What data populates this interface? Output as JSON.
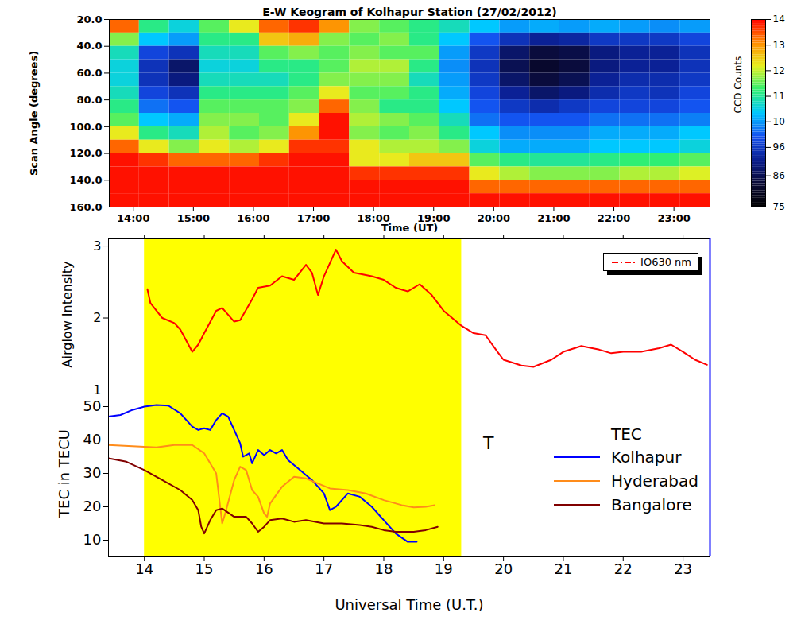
{
  "chart_data": [
    {
      "type": "heatmap",
      "title": "E-W Keogram of Kolhapur Station (27/02/2012)",
      "xlabel": "Time (UT)",
      "ylabel": "Scan Angle (degrees)",
      "x": [
        13.6,
        14.1,
        14.6,
        15.1,
        15.6,
        16.1,
        16.6,
        17.1,
        17.6,
        18.1,
        18.6,
        19.1,
        19.6,
        20.1,
        20.6,
        21.1,
        21.6,
        22.1,
        22.6,
        23.1
      ],
      "y": [
        20,
        30,
        40,
        50,
        60,
        70,
        80,
        90,
        100,
        110,
        120,
        130,
        140,
        150
      ],
      "cells": [
        [
          135,
          115,
          110,
          118,
          125,
          135,
          138,
          132,
          120,
          118,
          115,
          112,
          108,
          105,
          106,
          105,
          106,
          105,
          104,
          105
        ],
        [
          120,
          108,
          105,
          115,
          115,
          128,
          130,
          120,
          118,
          120,
          115,
          108,
          100,
          95,
          92,
          93,
          96,
          96,
          96,
          98
        ],
        [
          112,
          98,
          95,
          112,
          112,
          118,
          120,
          118,
          120,
          118,
          118,
          105,
          96,
          88,
          84,
          85,
          90,
          92,
          92,
          95
        ],
        [
          110,
          95,
          88,
          110,
          110,
          115,
          115,
          118,
          122,
          122,
          115,
          104,
          95,
          86,
          82,
          84,
          90,
          92,
          92,
          95
        ],
        [
          110,
          95,
          90,
          112,
          112,
          112,
          115,
          120,
          120,
          120,
          112,
          105,
          96,
          88,
          84,
          86,
          92,
          94,
          94,
          96
        ],
        [
          112,
          98,
          95,
          115,
          115,
          115,
          118,
          125,
          118,
          118,
          115,
          106,
          98,
          92,
          88,
          90,
          94,
          96,
          95,
          98
        ],
        [
          115,
          102,
          100,
          118,
          118,
          118,
          120,
          135,
          120,
          115,
          115,
          108,
          100,
          96,
          94,
          96,
          98,
          98,
          98,
          100
        ],
        [
          118,
          108,
          106,
          120,
          120,
          118,
          125,
          140,
          122,
          120,
          118,
          112,
          102,
          100,
          100,
          100,
          102,
          102,
          102,
          103
        ],
        [
          125,
          115,
          112,
          122,
          118,
          120,
          132,
          140,
          120,
          118,
          120,
          115,
          108,
          104,
          104,
          104,
          106,
          106,
          106,
          108
        ],
        [
          135,
          125,
          120,
          125,
          122,
          125,
          138,
          138,
          125,
          122,
          122,
          120,
          110,
          106,
          106,
          106,
          108,
          108,
          108,
          110
        ],
        [
          140,
          138,
          135,
          135,
          135,
          138,
          140,
          140,
          125,
          125,
          128,
          128,
          118,
          115,
          114,
          114,
          115,
          116,
          116,
          118
        ],
        [
          140,
          140,
          140,
          140,
          140,
          140,
          140,
          140,
          138,
          138,
          138,
          138,
          125,
          122,
          120,
          120,
          120,
          122,
          122,
          124
        ],
        [
          140,
          140,
          140,
          140,
          140,
          140,
          140,
          140,
          140,
          140,
          140,
          140,
          135,
          135,
          135,
          135,
          135,
          135,
          135,
          135
        ],
        [
          140,
          140,
          140,
          140,
          140,
          140,
          140,
          140,
          140,
          140,
          140,
          140,
          140,
          140,
          140,
          140,
          140,
          140,
          140,
          140
        ]
      ],
      "xlim": [
        13.6,
        23.6
      ],
      "xticks": [
        {
          "value": 14,
          "label": "14:00"
        },
        {
          "value": 15,
          "label": "15:00"
        },
        {
          "value": 16,
          "label": "16:00"
        },
        {
          "value": 17,
          "label": "17:00"
        },
        {
          "value": 18,
          "label": "18:00"
        },
        {
          "value": 19,
          "label": "19:00"
        },
        {
          "value": 20,
          "label": "20:00"
        },
        {
          "value": 21,
          "label": "21:00"
        },
        {
          "value": 22,
          "label": "22:00"
        },
        {
          "value": 23,
          "label": "23:00"
        }
      ],
      "ylim": [
        160,
        20
      ],
      "yticks": [
        {
          "value": 20,
          "label": "20.0"
        },
        {
          "value": 40,
          "label": "40.0"
        },
        {
          "value": 60,
          "label": "60.0"
        },
        {
          "value": 80,
          "label": "80.0"
        },
        {
          "value": 100,
          "label": "100.0"
        },
        {
          "value": 120,
          "label": "120.0"
        },
        {
          "value": 140,
          "label": "140.0"
        },
        {
          "value": 160,
          "label": "160.0"
        }
      ],
      "colorbar": {
        "label": "CCD Counts",
        "range": [
          75,
          141
        ],
        "ticks": [
          75,
          86,
          96,
          {
            "value": 105,
            "label": "10"
          },
          {
            "value": 114,
            "label": "11"
          },
          {
            "value": 123,
            "label": "12"
          },
          {
            "value": 132,
            "label": "13"
          },
          {
            "value": 141,
            "label": "14"
          }
        ]
      }
    },
    {
      "type": "line",
      "ylabel": "Airglow Intensity",
      "xlim": [
        13.4,
        23.45
      ],
      "xticks": [
        14,
        15,
        16,
        17,
        18,
        19,
        20,
        21,
        22,
        23
      ],
      "ylim": [
        1,
        3.1
      ],
      "yticks": [
        1,
        2,
        3
      ],
      "tick_labels": "y",
      "legend": "top-right",
      "span": {
        "from": 14,
        "to": 19.3,
        "color": "#ffff00"
      },
      "series": [
        {
          "name": "IO630 nm",
          "color": "#ff0000",
          "x": [
            14.05,
            14.1,
            14.3,
            14.5,
            14.6,
            14.8,
            14.9,
            15.0,
            15.2,
            15.3,
            15.5,
            15.6,
            15.8,
            15.9,
            16.1,
            16.3,
            16.5,
            16.7,
            16.8,
            16.9,
            17.0,
            17.2,
            17.3,
            17.5,
            17.8,
            18.0,
            18.2,
            18.4,
            18.6,
            18.8,
            19.0,
            19.3,
            19.5,
            19.7,
            19.9,
            20.0,
            20.3,
            20.5,
            20.8,
            21.0,
            21.3,
            21.6,
            21.8,
            22.0,
            22.3,
            22.6,
            22.8,
            23.0,
            23.2,
            23.4
          ],
          "values": [
            2.4,
            2.21,
            2,
            1.93,
            1.84,
            1.53,
            1.63,
            1.79,
            2.1,
            2.14,
            1.95,
            1.97,
            2.26,
            2.42,
            2.45,
            2.58,
            2.53,
            2.74,
            2.63,
            2.32,
            2.58,
            2.95,
            2.79,
            2.63,
            2.58,
            2.53,
            2.42,
            2.37,
            2.47,
            2.32,
            2.1,
            1.89,
            1.79,
            1.76,
            1.53,
            1.42,
            1.34,
            1.32,
            1.42,
            1.53,
            1.61,
            1.56,
            1.51,
            1.53,
            1.53,
            1.58,
            1.63,
            1.53,
            1.42,
            1.35
          ]
        }
      ]
    },
    {
      "type": "line",
      "xlabel": "Universal Time (U.T.)",
      "ylabel": "TEC in TECU",
      "xlim": [
        13.4,
        23.45
      ],
      "xticks": [
        14,
        15,
        16,
        17,
        18,
        19,
        20,
        21,
        22,
        23
      ],
      "ylim": [
        5,
        55
      ],
      "yticks": [
        10,
        20,
        30,
        40,
        50
      ],
      "legend": "right",
      "legend_title": "TEC",
      "span": {
        "from": 14,
        "to": 19.3,
        "color": "#ffff00"
      },
      "annotations": [
        {
          "text": "T",
          "x": 19.75,
          "y": 39
        }
      ],
      "series": [
        {
          "name": "Kolhapur",
          "color": "#0000ff",
          "x": [
            13.4,
            13.6,
            13.8,
            14.0,
            14.2,
            14.4,
            14.6,
            14.8,
            14.9,
            15.0,
            15.1,
            15.2,
            15.3,
            15.4,
            15.5,
            15.6,
            15.65,
            15.75,
            15.8,
            15.9,
            16.0,
            16.1,
            16.2,
            16.3,
            16.4,
            16.6,
            16.8,
            17.0,
            17.1,
            17.2,
            17.4,
            17.6,
            17.8,
            18.0,
            18.2,
            18.4,
            18.55
          ],
          "values": [
            47,
            47.5,
            49,
            50,
            50.5,
            50.3,
            48,
            44,
            43,
            43.5,
            43,
            46,
            48,
            47,
            43,
            39,
            35,
            36,
            33,
            37,
            35.5,
            37,
            36,
            37,
            34,
            31,
            28,
            24,
            19,
            20,
            24,
            23,
            20,
            16,
            12,
            9.5,
            9.5
          ]
        },
        {
          "name": "Hyderabad",
          "color": "#ff8c1a",
          "x": [
            13.4,
            14.0,
            14.2,
            14.5,
            14.8,
            15.0,
            15.2,
            15.3,
            15.35,
            15.5,
            15.6,
            15.7,
            15.8,
            15.9,
            16.0,
            16.05,
            16.1,
            16.3,
            16.5,
            16.7,
            16.9,
            17.1,
            17.4,
            17.7,
            18.0,
            18.3,
            18.5,
            18.7,
            18.85
          ],
          "values": [
            38.5,
            38,
            37.8,
            38.5,
            38.5,
            36,
            30,
            15,
            18,
            28,
            32,
            31,
            25,
            23,
            18,
            17,
            21,
            26,
            29,
            28.5,
            27,
            25.5,
            25,
            24,
            22,
            20.5,
            19.8,
            20,
            20.5
          ]
        },
        {
          "name": "Bangalore",
          "color": "#800000",
          "x": [
            13.4,
            13.7,
            14.0,
            14.3,
            14.6,
            14.8,
            14.9,
            14.95,
            15.0,
            15.1,
            15.2,
            15.3,
            15.5,
            15.7,
            15.8,
            15.9,
            16.0,
            16.1,
            16.3,
            16.5,
            16.7,
            17.0,
            17.3,
            17.6,
            17.8,
            18.0,
            18.2,
            18.5,
            18.7,
            18.9
          ],
          "values": [
            34.5,
            33.5,
            31,
            28,
            25,
            22,
            19,
            14,
            12,
            16,
            19,
            19.5,
            17,
            17,
            15,
            12.5,
            14,
            16,
            16.5,
            15.5,
            16,
            15,
            15,
            14.5,
            14,
            13,
            12.5,
            12.5,
            13,
            14
          ]
        }
      ]
    }
  ]
}
